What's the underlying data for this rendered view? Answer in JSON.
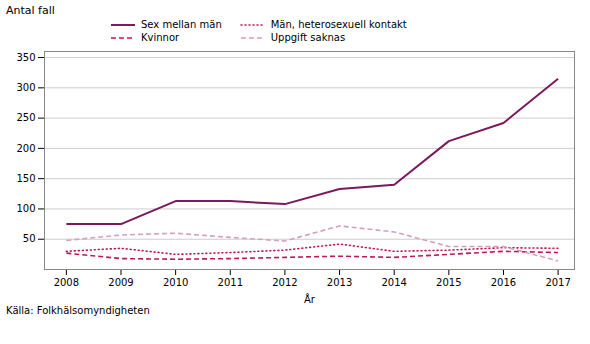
{
  "chart_data": {
    "type": "line",
    "ylabel": "Antal fall",
    "xlabel": "År",
    "annotations": [
      "Källa: Folkhälsomyndigheten"
    ],
    "x": [
      2008,
      2009,
      2010,
      2011,
      2012,
      2013,
      2014,
      2015,
      2016,
      2017
    ],
    "series": [
      {
        "name": "Sex mellan män",
        "color": "#7B1A5A",
        "line_style": "solid",
        "values": [
          75,
          75,
          113,
          113,
          108,
          133,
          140,
          212,
          242,
          315
        ]
      },
      {
        "name": "Män, heterosexuell kontakt",
        "color": "#C2185B",
        "line_style": "dotted",
        "values": [
          30,
          35,
          25,
          28,
          32,
          42,
          30,
          32,
          36,
          35
        ]
      },
      {
        "name": "Kvinnor",
        "color": "#C2185B",
        "line_style": "dashed",
        "values": [
          27,
          18,
          17,
          18,
          20,
          22,
          20,
          25,
          30,
          28
        ]
      },
      {
        "name": "Uppgift saknas",
        "color": "#D4A0C0",
        "line_style": "dashed",
        "values": [
          48,
          57,
          60,
          53,
          47,
          72,
          62,
          38,
          38,
          14
        ]
      }
    ],
    "xlim": [
      2007.6,
      2017.3
    ],
    "xticks": [
      2008,
      2009,
      2010,
      2011,
      2012,
      2013,
      2014,
      2015,
      2016,
      2017
    ],
    "ylim": [
      0,
      360
    ],
    "yticks": [
      50,
      100,
      150,
      200,
      250,
      300,
      350
    ],
    "grid": true,
    "legend": "top"
  }
}
